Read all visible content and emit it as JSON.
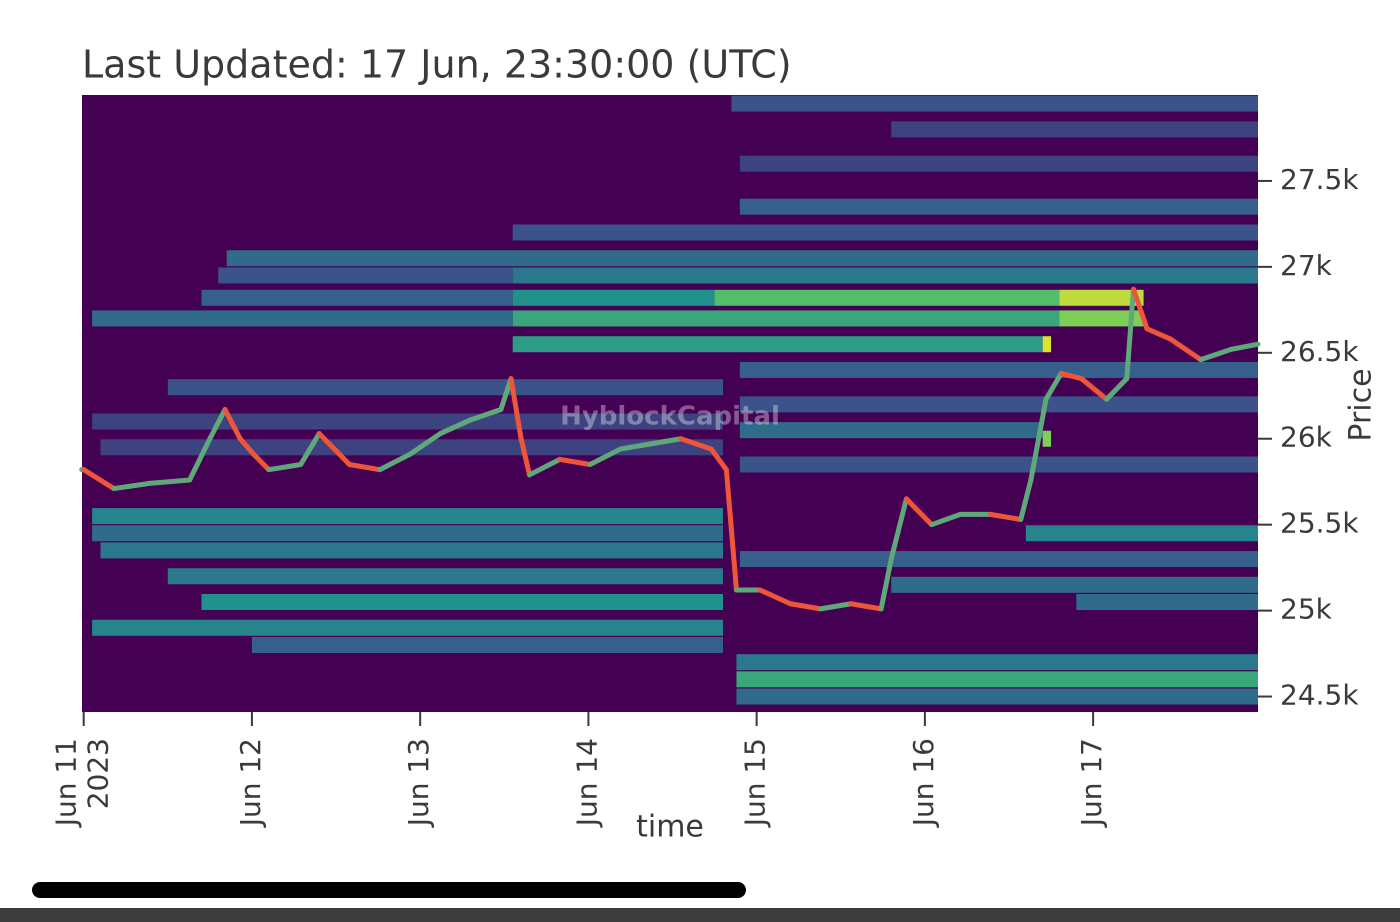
{
  "chart_data": {
    "type": "heatmap",
    "title": "Last Updated: 17 Jun, 23:30:00 (UTC)",
    "watermark": "HyblockCapital",
    "x_label": "time",
    "y_label": "Price",
    "xlim": [
      -0.01,
      6.98
    ],
    "ylim": [
      24410,
      28000
    ],
    "xticks": [
      {
        "value": 0,
        "label": "Jun 11\n2023"
      },
      {
        "value": 1,
        "label": "Jun 12"
      },
      {
        "value": 2,
        "label": "Jun 13"
      },
      {
        "value": 3,
        "label": "Jun 14"
      },
      {
        "value": 4,
        "label": "Jun 15"
      },
      {
        "value": 5,
        "label": "Jun 16"
      },
      {
        "value": 6,
        "label": "Jun 17"
      }
    ],
    "yticks": [
      {
        "value": 24500,
        "label": "24.5k"
      },
      {
        "value": 25000,
        "label": "25k"
      },
      {
        "value": 25500,
        "label": "25.5k"
      },
      {
        "value": 26000,
        "label": "26k"
      },
      {
        "value": 26500,
        "label": "26.5k"
      },
      {
        "value": 27000,
        "label": "27k"
      },
      {
        "value": 27500,
        "label": "27.5k"
      }
    ],
    "colorscale": "viridis",
    "zlim": [
      0,
      1
    ],
    "background_color": "#440154",
    "bands": [
      [
        26700,
        0.05,
        2.55,
        0.35
      ],
      [
        26700,
        2.55,
        5.8,
        0.6
      ],
      [
        26700,
        5.8,
        6.3,
        0.8
      ],
      [
        26820,
        0.7,
        2.55,
        0.3
      ],
      [
        26820,
        2.55,
        3.75,
        0.5
      ],
      [
        26820,
        3.75,
        5.8,
        0.7
      ],
      [
        26820,
        5.8,
        6.3,
        0.9
      ],
      [
        26950,
        0.8,
        2.55,
        0.25
      ],
      [
        26950,
        2.55,
        6.98,
        0.4
      ],
      [
        26550,
        2.55,
        5.7,
        0.55
      ],
      [
        26550,
        5.7,
        5.75,
        0.95
      ],
      [
        27050,
        0.85,
        6.98,
        0.35
      ],
      [
        27200,
        2.55,
        6.98,
        0.25
      ],
      [
        27350,
        3.9,
        6.98,
        0.3
      ],
      [
        27600,
        3.9,
        6.98,
        0.2
      ],
      [
        27800,
        4.8,
        6.98,
        0.2
      ],
      [
        27950,
        3.85,
        6.98,
        0.25
      ],
      [
        25550,
        0.05,
        3.8,
        0.45
      ],
      [
        25450,
        0.05,
        3.8,
        0.35
      ],
      [
        25350,
        0.1,
        3.8,
        0.4
      ],
      [
        25200,
        0.5,
        3.8,
        0.4
      ],
      [
        25050,
        0.7,
        3.8,
        0.5
      ],
      [
        24900,
        0.05,
        3.8,
        0.45
      ],
      [
        24800,
        1,
        3.8,
        0.3
      ],
      [
        26300,
        0.5,
        3.8,
        0.25
      ],
      [
        26100,
        0.05,
        3.8,
        0.2
      ],
      [
        25950,
        0.1,
        3.8,
        0.2
      ],
      [
        24600,
        3.88,
        6.98,
        0.6
      ],
      [
        24700,
        3.88,
        6.98,
        0.4
      ],
      [
        24500,
        3.88,
        6.98,
        0.35
      ],
      [
        25450,
        5.6,
        6.98,
        0.45
      ],
      [
        25300,
        3.9,
        6.98,
        0.3
      ],
      [
        25150,
        4.8,
        6.98,
        0.35
      ],
      [
        25850,
        3.9,
        6.98,
        0.25
      ],
      [
        26050,
        3.9,
        5.7,
        0.35
      ],
      [
        26000,
        5.7,
        5.75,
        0.8
      ],
      [
        26200,
        3.9,
        6.98,
        0.25
      ],
      [
        26400,
        3.9,
        6.98,
        0.3
      ],
      [
        25050,
        5.9,
        6.98,
        0.35
      ]
    ],
    "price": {
      "increasing_color": "#5fa87a",
      "decreasing_color": "#ef553b",
      "x": [
        0,
        0.18,
        0.39,
        0.63,
        0.75,
        0.84,
        0.93,
        1.01,
        1.1,
        1.29,
        1.4,
        1.58,
        1.76,
        1.94,
        2.12,
        2.3,
        2.48,
        2.54,
        2.6,
        2.65,
        2.83,
        3.01,
        3.19,
        3.37,
        3.55,
        3.73,
        3.82,
        3.88,
        4.02,
        4.2,
        4.38,
        4.56,
        4.74,
        4.8,
        4.89,
        5.04,
        5.21,
        5.39,
        5.57,
        5.63,
        5.72,
        5.81,
        5.93,
        6.08,
        6.2,
        6.24,
        6.32,
        6.46,
        6.64,
        6.82,
        6.98
      ],
      "values": [
        25820,
        25710,
        25740,
        25760,
        26000,
        26170,
        26000,
        25910,
        25820,
        25850,
        26030,
        25850,
        25820,
        25910,
        26030,
        26110,
        26170,
        26350,
        26000,
        25790,
        25880,
        25850,
        25940,
        25970,
        26000,
        25940,
        25820,
        25120,
        25120,
        25040,
        25010,
        25040,
        25010,
        25300,
        25650,
        25500,
        25560,
        25560,
        25530,
        25760,
        26230,
        26380,
        26350,
        26230,
        26350,
        26870,
        26640,
        26580,
        26460,
        26520,
        26550
      ]
    }
  }
}
